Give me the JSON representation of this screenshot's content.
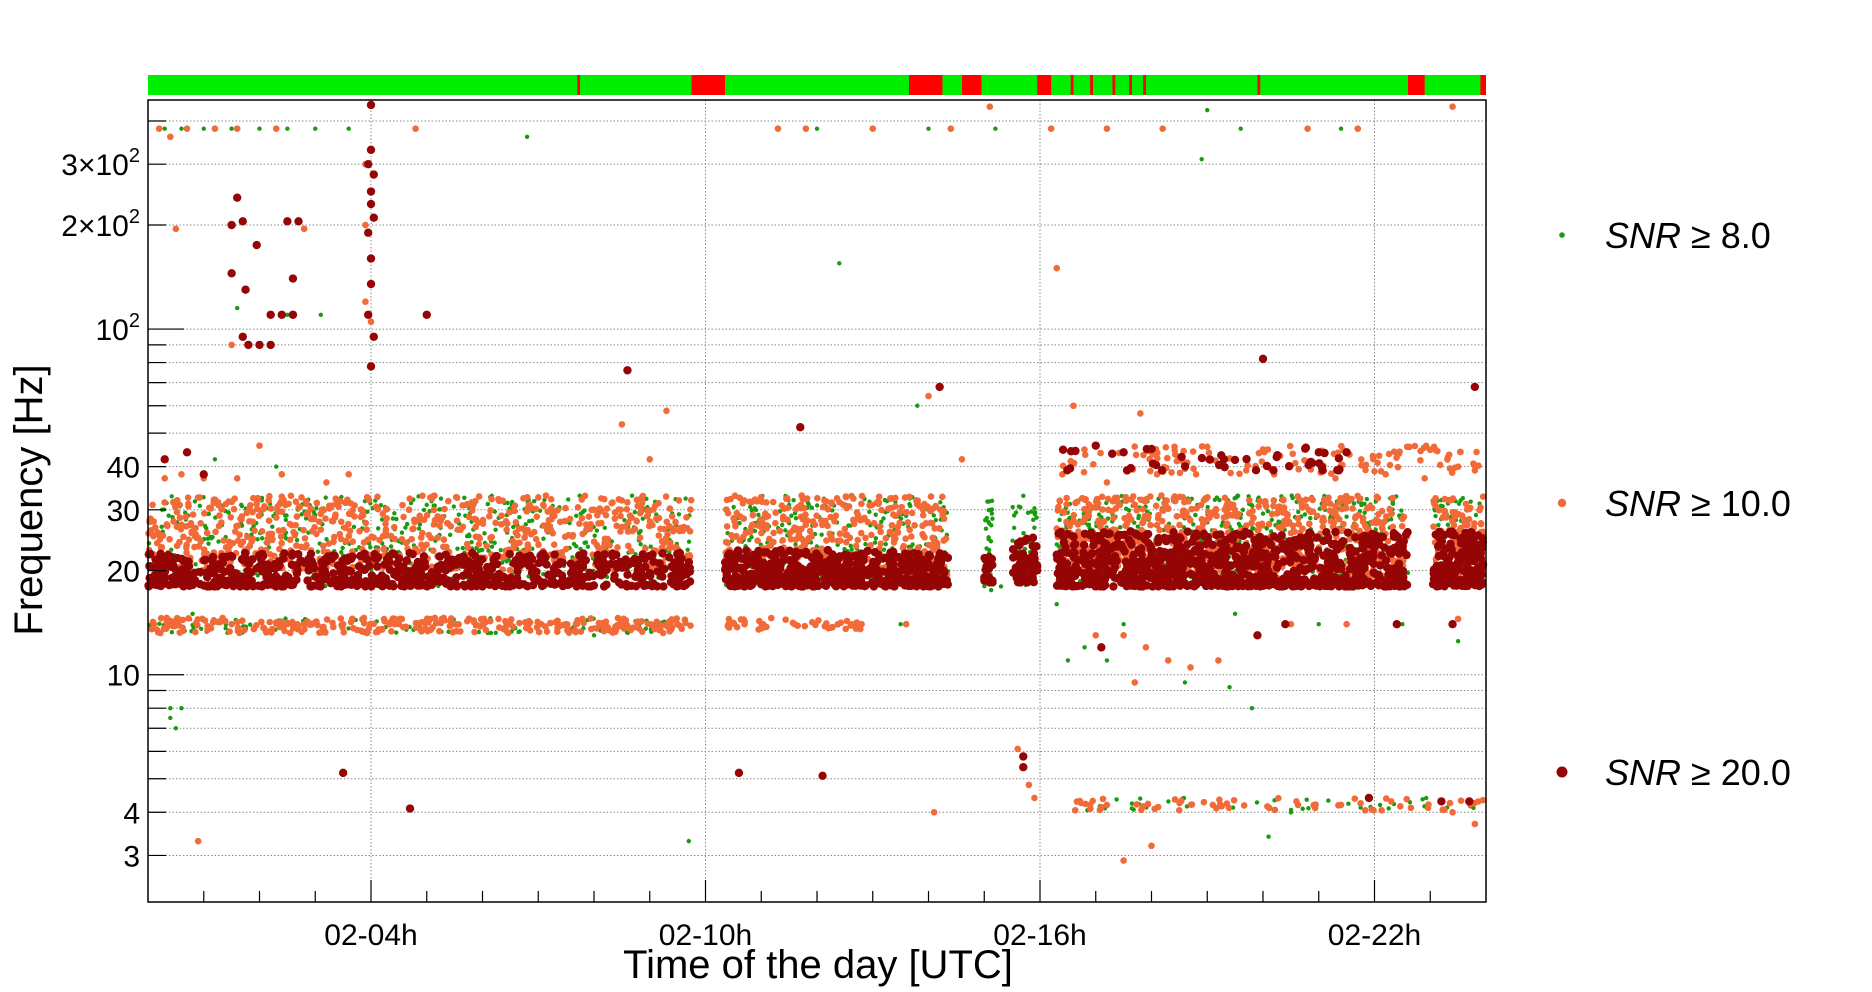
{
  "chart_data": {
    "type": "scatter",
    "xlabel": "Time of the day [UTC]",
    "ylabel": "Frequency [Hz]",
    "xlim": [
      0,
      24
    ],
    "ylim": [
      2.2,
      460
    ],
    "y_scale": "log",
    "x_ticks": [
      {
        "value": 4,
        "label": "02-04h"
      },
      {
        "value": 10,
        "label": "02-10h"
      },
      {
        "value": 16,
        "label": "02-16h"
      },
      {
        "value": 22,
        "label": "02-22h"
      }
    ],
    "y_ticks": [
      {
        "value": 3,
        "base": "3",
        "exp": ""
      },
      {
        "value": 4,
        "base": "4",
        "exp": ""
      },
      {
        "value": 10,
        "base": "10",
        "exp": ""
      },
      {
        "value": 20,
        "base": "20",
        "exp": ""
      },
      {
        "value": 30,
        "base": "30",
        "exp": ""
      },
      {
        "value": 40,
        "base": "40",
        "exp": ""
      },
      {
        "value": 100,
        "base": "10",
        "exp": "2"
      },
      {
        "value": 200,
        "base": "2×10",
        "exp": "2"
      },
      {
        "value": 300,
        "base": "3×10",
        "exp": "2"
      }
    ],
    "grid": true,
    "legend_position": "right",
    "segments_timeline": [
      {
        "start": 7.7,
        "end": 7.75,
        "state": "bad"
      },
      {
        "start": 9.75,
        "end": 10.35,
        "state": "bad"
      },
      {
        "start": 13.65,
        "end": 14.25,
        "state": "bad"
      },
      {
        "start": 14.6,
        "end": 14.95,
        "state": "bad"
      },
      {
        "start": 15.95,
        "end": 16.2,
        "state": "bad"
      },
      {
        "start": 16.55,
        "end": 16.6,
        "state": "bad"
      },
      {
        "start": 16.9,
        "end": 16.95,
        "state": "bad"
      },
      {
        "start": 17.3,
        "end": 17.35,
        "state": "bad"
      },
      {
        "start": 17.6,
        "end": 17.65,
        "state": "bad"
      },
      {
        "start": 17.85,
        "end": 17.9,
        "state": "bad"
      },
      {
        "start": 19.9,
        "end": 19.95,
        "state": "bad"
      },
      {
        "start": 22.6,
        "end": 22.9,
        "state": "bad"
      },
      {
        "start": 23.9,
        "end": 24.0,
        "state": "bad"
      }
    ],
    "series": [
      {
        "name": "SNR ≥ 8.0",
        "legend_label": "SNR",
        "legend_op": "≥",
        "legend_value": "8.0",
        "color": "#1a9a0e",
        "marker": "star-small",
        "points": [
          [
            0.3,
            380
          ],
          [
            0.6,
            380
          ],
          [
            1.0,
            380
          ],
          [
            1.5,
            380
          ],
          [
            2.0,
            380
          ],
          [
            2.5,
            380
          ],
          [
            3.0,
            380
          ],
          [
            3.6,
            380
          ],
          [
            6.8,
            360
          ],
          [
            0.4,
            8.0
          ],
          [
            0.5,
            7.0
          ],
          [
            0.4,
            7.5
          ],
          [
            0.6,
            8.0
          ],
          [
            1.6,
            115
          ],
          [
            2.5,
            110
          ],
          [
            3.1,
            110
          ],
          [
            12.4,
            155
          ],
          [
            16.3,
            16
          ],
          [
            16.5,
            11
          ],
          [
            16.8,
            12
          ],
          [
            17.2,
            11
          ],
          [
            18.6,
            9.5
          ],
          [
            19.4,
            9.2
          ],
          [
            19.8,
            8.0
          ],
          [
            19.0,
            430
          ],
          [
            18.9,
            310
          ],
          [
            13.8,
            60
          ],
          [
            12.0,
            380
          ],
          [
            14.0,
            380
          ],
          [
            15.2,
            380
          ],
          [
            19.6,
            380
          ],
          [
            21.4,
            380
          ],
          [
            9.7,
            3.3
          ],
          [
            20.1,
            3.4
          ],
          [
            20.5,
            4.0
          ],
          [
            22.1,
            4.2
          ],
          [
            1.2,
            42
          ],
          [
            2.3,
            40
          ],
          [
            0.8,
            15
          ],
          [
            4.5,
            14
          ],
          [
            8.0,
            13
          ],
          [
            9.0,
            14
          ],
          [
            11.0,
            14
          ],
          [
            13.5,
            14
          ],
          [
            17.5,
            14
          ],
          [
            19.5,
            15
          ],
          [
            21.0,
            14
          ],
          [
            22.5,
            14
          ],
          [
            23.5,
            12.5
          ],
          [
            0.5,
            32
          ],
          [
            5.0,
            31
          ],
          [
            11.5,
            31
          ],
          [
            17.0,
            32
          ],
          [
            23.2,
            32
          ],
          [
            7.2,
            28
          ],
          [
            15.0,
            19
          ],
          [
            15.3,
            18
          ],
          [
            13.2,
            23
          ],
          [
            4.2,
            24
          ],
          [
            20.8,
            26
          ],
          [
            18.4,
            21
          ]
        ]
      },
      {
        "name": "SNR ≥ 10.0",
        "legend_label": "SNR",
        "legend_op": "≥",
        "legend_value": "10.0",
        "color": "#f26a38",
        "marker": "circle-small",
        "points": [
          [
            0.2,
            380
          ],
          [
            0.4,
            360
          ],
          [
            0.7,
            380
          ],
          [
            1.2,
            380
          ],
          [
            1.6,
            380
          ],
          [
            2.3,
            380
          ],
          [
            4.8,
            380
          ],
          [
            11.3,
            380
          ],
          [
            11.8,
            380
          ],
          [
            13.0,
            380
          ],
          [
            14.4,
            380
          ],
          [
            16.2,
            380
          ],
          [
            17.2,
            380
          ],
          [
            18.2,
            380
          ],
          [
            21.7,
            380
          ],
          [
            20.8,
            380
          ],
          [
            15.1,
            440
          ],
          [
            23.4,
            440
          ],
          [
            0.5,
            195
          ],
          [
            2.8,
            195
          ],
          [
            16.3,
            150
          ],
          [
            8.5,
            53
          ],
          [
            9.3,
            58
          ],
          [
            16.6,
            60
          ],
          [
            17.8,
            57
          ],
          [
            14.0,
            64
          ],
          [
            9.0,
            42
          ],
          [
            14.6,
            42
          ],
          [
            0.3,
            37
          ],
          [
            0.6,
            38
          ],
          [
            1.0,
            37
          ],
          [
            1.6,
            37
          ],
          [
            2.4,
            38
          ],
          [
            3.2,
            36
          ],
          [
            3.6,
            38
          ],
          [
            16.4,
            38
          ],
          [
            17.2,
            36
          ],
          [
            18.1,
            38
          ],
          [
            18.8,
            38
          ],
          [
            19.7,
            39
          ],
          [
            20.2,
            38
          ],
          [
            21.3,
            37
          ],
          [
            22.2,
            38
          ],
          [
            22.9,
            37
          ],
          [
            23.8,
            39
          ],
          [
            23.5,
            40
          ],
          [
            0.9,
            3.3
          ],
          [
            14.1,
            4.0
          ],
          [
            15.9,
            4.4
          ],
          [
            17.2,
            4.2
          ],
          [
            18.0,
            3.2
          ],
          [
            17.5,
            2.9
          ],
          [
            19.1,
            4.2
          ],
          [
            20.6,
            4.3
          ],
          [
            21.4,
            4.2
          ],
          [
            22.3,
            4.3
          ],
          [
            23.4,
            4.0
          ],
          [
            23.8,
            3.7
          ],
          [
            16.9,
            4.2
          ],
          [
            17.0,
            13
          ],
          [
            17.5,
            13
          ],
          [
            17.9,
            12
          ],
          [
            18.3,
            11
          ],
          [
            18.7,
            10.5
          ],
          [
            19.2,
            11
          ],
          [
            17.7,
            9.5
          ],
          [
            0.5,
            14
          ],
          [
            1.5,
            14
          ],
          [
            2.5,
            14
          ],
          [
            3.5,
            14
          ],
          [
            4.5,
            14
          ],
          [
            5.5,
            14
          ],
          [
            6.5,
            14
          ],
          [
            7.5,
            14
          ],
          [
            8.5,
            14
          ],
          [
            9.5,
            14
          ],
          [
            10.7,
            14
          ],
          [
            11.6,
            14
          ],
          [
            12.8,
            14
          ],
          [
            13.6,
            14
          ],
          [
            20.5,
            14
          ],
          [
            21.5,
            14
          ],
          [
            23.5,
            14.5
          ],
          [
            1.5,
            90
          ],
          [
            4.0,
            105
          ],
          [
            2.0,
            46
          ],
          [
            15.6,
            6.1
          ],
          [
            15.8,
            4.8
          ],
          [
            3.9,
            300
          ],
          [
            3.9,
            200
          ],
          [
            3.9,
            120
          ]
        ]
      },
      {
        "name": "SNR ≥ 20.0",
        "legend_label": "SNR",
        "legend_op": "≥",
        "legend_value": "20.0",
        "color": "#960505",
        "marker": "circle-large",
        "points": [
          [
            4.0,
            445
          ],
          [
            4.0,
            330
          ],
          [
            3.95,
            300
          ],
          [
            4.05,
            280
          ],
          [
            4.0,
            250
          ],
          [
            4.0,
            230
          ],
          [
            4.05,
            210
          ],
          [
            3.95,
            190
          ],
          [
            4.0,
            160
          ],
          [
            4.0,
            135
          ],
          [
            3.95,
            110
          ],
          [
            4.05,
            95
          ],
          [
            4.0,
            78
          ],
          [
            1.6,
            240
          ],
          [
            1.7,
            205
          ],
          [
            1.5,
            200
          ],
          [
            2.5,
            205
          ],
          [
            2.7,
            205
          ],
          [
            1.95,
            175
          ],
          [
            1.5,
            145
          ],
          [
            2.6,
            140
          ],
          [
            1.75,
            130
          ],
          [
            2.2,
            110
          ],
          [
            2.4,
            110
          ],
          [
            2.6,
            110
          ],
          [
            1.7,
            95
          ],
          [
            1.8,
            90
          ],
          [
            2.0,
            90
          ],
          [
            2.2,
            90
          ],
          [
            5.0,
            110
          ],
          [
            8.6,
            76
          ],
          [
            14.2,
            68
          ],
          [
            11.7,
            52
          ],
          [
            20.0,
            82
          ],
          [
            0.3,
            42
          ],
          [
            0.7,
            44
          ],
          [
            1.0,
            38
          ],
          [
            17.0,
            46
          ],
          [
            17.5,
            44
          ],
          [
            18.0,
            45
          ],
          [
            21.0,
            44
          ],
          [
            21.5,
            44
          ],
          [
            19.3,
            42
          ],
          [
            3.5,
            5.2
          ],
          [
            4.7,
            4.1
          ],
          [
            10.6,
            5.2
          ],
          [
            12.1,
            5.1
          ],
          [
            15.7,
            5.8
          ],
          [
            15.7,
            5.4
          ],
          [
            23.7,
            4.3
          ],
          [
            23.2,
            4.3
          ],
          [
            21.9,
            4.4
          ],
          [
            19.9,
            13
          ],
          [
            20.4,
            14
          ],
          [
            22.4,
            14
          ],
          [
            23.4,
            14
          ],
          [
            17.1,
            12
          ],
          [
            23.8,
            68
          ]
        ]
      }
    ],
    "dense_clusters": [
      {
        "series_index": 0,
        "x_start": 0.0,
        "x_end": 9.75,
        "y_low": 18,
        "y_high": 33,
        "count": 520
      },
      {
        "series_index": 1,
        "x_start": 0.0,
        "x_end": 9.75,
        "y_low": 20,
        "y_high": 33,
        "count": 700
      },
      {
        "series_index": 1,
        "x_start": 0.0,
        "x_end": 9.75,
        "y_low": 13.2,
        "y_high": 14.6,
        "count": 280
      },
      {
        "series_index": 0,
        "x_start": 0.0,
        "x_end": 9.75,
        "y_low": 13.2,
        "y_high": 14.6,
        "count": 110
      },
      {
        "series_index": 2,
        "x_start": 0.0,
        "x_end": 9.75,
        "y_low": 18,
        "y_high": 22.5,
        "count": 700
      },
      {
        "series_index": 0,
        "x_start": 10.35,
        "x_end": 14.35,
        "y_low": 18,
        "y_high": 33,
        "count": 260
      },
      {
        "series_index": 1,
        "x_start": 10.35,
        "x_end": 14.35,
        "y_low": 19,
        "y_high": 33,
        "count": 380
      },
      {
        "series_index": 2,
        "x_start": 10.35,
        "x_end": 14.35,
        "y_low": 18,
        "y_high": 23,
        "count": 520
      },
      {
        "series_index": 1,
        "x_start": 10.35,
        "x_end": 12.8,
        "y_low": 13.5,
        "y_high": 14.6,
        "count": 40
      },
      {
        "series_index": 0,
        "x_start": 15.0,
        "x_end": 15.15,
        "y_low": 17,
        "y_high": 33,
        "count": 30
      },
      {
        "series_index": 2,
        "x_start": 15.0,
        "x_end": 15.15,
        "y_low": 18.5,
        "y_high": 22,
        "count": 25
      },
      {
        "series_index": 0,
        "x_start": 15.5,
        "x_end": 15.95,
        "y_low": 18,
        "y_high": 33,
        "count": 40
      },
      {
        "series_index": 2,
        "x_start": 15.5,
        "x_end": 15.95,
        "y_low": 18.5,
        "y_high": 25,
        "count": 60
      },
      {
        "series_index": 0,
        "x_start": 16.3,
        "x_end": 22.6,
        "y_low": 18,
        "y_high": 33,
        "count": 500
      },
      {
        "series_index": 1,
        "x_start": 16.3,
        "x_end": 22.6,
        "y_low": 19,
        "y_high": 33,
        "count": 700
      },
      {
        "series_index": 2,
        "x_start": 16.3,
        "x_end": 22.6,
        "y_low": 18,
        "y_high": 26,
        "count": 900
      },
      {
        "series_index": 0,
        "x_start": 23.05,
        "x_end": 23.95,
        "y_low": 18,
        "y_high": 33,
        "count": 70
      },
      {
        "series_index": 1,
        "x_start": 23.05,
        "x_end": 23.95,
        "y_low": 19,
        "y_high": 33,
        "count": 90
      },
      {
        "series_index": 2,
        "x_start": 23.05,
        "x_end": 23.95,
        "y_low": 18,
        "y_high": 26,
        "count": 160
      },
      {
        "series_index": 1,
        "x_start": 16.4,
        "x_end": 23.95,
        "y_low": 38,
        "y_high": 46,
        "count": 120
      },
      {
        "series_index": 2,
        "x_start": 16.4,
        "x_end": 21.8,
        "y_low": 39,
        "y_high": 46,
        "count": 40
      },
      {
        "series_index": 1,
        "x_start": 16.4,
        "x_end": 23.95,
        "y_low": 4.05,
        "y_high": 4.4,
        "count": 60
      },
      {
        "series_index": 0,
        "x_start": 16.4,
        "x_end": 23.95,
        "y_low": 4.05,
        "y_high": 4.4,
        "count": 40
      }
    ]
  },
  "colors": {
    "good_segment": "#00ee00",
    "bad_segment": "#ff0000",
    "grid": "#8a8a8a"
  }
}
